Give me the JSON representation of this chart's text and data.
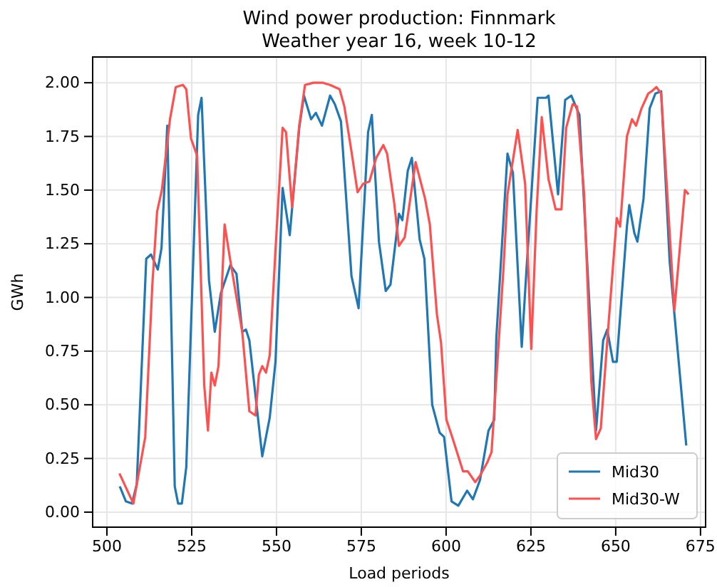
{
  "chart_data": {
    "type": "line",
    "title": "Wind power production: Finnmark",
    "subtitle": "Weather year 16, week 10-12",
    "xlabel": "Load periods",
    "ylabel": "GWh",
    "xlim": [
      495.8,
      676.5
    ],
    "xticks": [
      500,
      525,
      550,
      575,
      600,
      625,
      650,
      675
    ],
    "ylim": [
      -0.07,
      2.12
    ],
    "yticks": [
      {
        "value": 0,
        "label": "0.00"
      },
      {
        "value": 0.25,
        "label": "0.25"
      },
      {
        "value": 0.5,
        "label": "0.50"
      },
      {
        "value": 0.75,
        "label": "0.75"
      },
      {
        "value": 1,
        "label": "1.00"
      },
      {
        "value": 1.25,
        "label": "1.25"
      },
      {
        "value": 1.5,
        "label": "1.50"
      },
      {
        "value": 1.75,
        "label": "1.75"
      },
      {
        "value": 2,
        "label": "2.00"
      }
    ],
    "grid": true,
    "legend": "bottom right",
    "line_style": "solid",
    "marker": "none",
    "series": [
      {
        "name": "Mid30",
        "color": "#1f77b4",
        "x": [
          503.8,
          505.6,
          507.4,
          508.8,
          511.6,
          513.0,
          515.0,
          516.1,
          517.8,
          520.0,
          521.0,
          522.1,
          523.4,
          526.9,
          527.9,
          530.1,
          531.8,
          533.6,
          536.4,
          538.2,
          539.9,
          541.0,
          542.0,
          545.8,
          548.0,
          549.7,
          551.8,
          553.9,
          556.7,
          558.1,
          560.2,
          561.6,
          563.4,
          565.8,
          567.2,
          569.0,
          572.1,
          574.2,
          577.0,
          578.1,
          580.2,
          582.2,
          583.6,
          586.1,
          587.1,
          588.7,
          589.9,
          592.2,
          593.6,
          595.9,
          598.1,
          599.4,
          601.6,
          603.6,
          606.2,
          607.9,
          610.0,
          612.5,
          614.2,
          614.8,
          618.1,
          619.7,
          622.3,
          623.7,
          627.0,
          629.5,
          630.2,
          633.0,
          635.1,
          636.9,
          639.3,
          644.2,
          646.3,
          647.5,
          649.2,
          650.3,
          653.3,
          654.0,
          655.5,
          656.4,
          658.2,
          660.0,
          661.7,
          663.4,
          665.9,
          670.8
        ],
        "values": [
          0.12,
          0.05,
          0.04,
          0.13,
          1.18,
          1.2,
          1.13,
          1.23,
          1.8,
          0.12,
          0.04,
          0.04,
          0.21,
          1.85,
          1.93,
          1.08,
          0.84,
          1.02,
          1.15,
          1.11,
          0.84,
          0.85,
          0.8,
          0.26,
          0.44,
          0.7,
          1.51,
          1.29,
          1.79,
          1.94,
          1.83,
          1.86,
          1.8,
          1.94,
          1.9,
          1.82,
          1.1,
          0.95,
          1.77,
          1.85,
          1.26,
          1.03,
          1.06,
          1.39,
          1.36,
          1.59,
          1.65,
          1.27,
          1.18,
          0.5,
          0.37,
          0.35,
          0.05,
          0.03,
          0.1,
          0.06,
          0.15,
          0.38,
          0.43,
          0.81,
          1.67,
          1.58,
          0.77,
          1.13,
          1.93,
          1.93,
          1.94,
          1.48,
          1.92,
          1.94,
          1.85,
          0.38,
          0.8,
          0.85,
          0.7,
          0.7,
          1.33,
          1.43,
          1.3,
          1.26,
          1.46,
          1.88,
          1.95,
          1.96,
          1.17,
          0.31
        ]
      },
      {
        "name": "Mid30-W",
        "color": "#ff4f4f",
        "x": [
          503.7,
          507.8,
          511.3,
          513.4,
          514.8,
          516.2,
          518.6,
          520.3,
          522.4,
          523.4,
          524.8,
          526.6,
          528.7,
          529.8,
          530.8,
          531.8,
          532.9,
          534.7,
          536.4,
          539.9,
          542.0,
          543.8,
          544.8,
          545.8,
          546.9,
          548.0,
          549.7,
          551.8,
          552.8,
          554.6,
          556.7,
          558.4,
          560.9,
          563.7,
          565.8,
          568.6,
          570.0,
          572.1,
          573.9,
          575.6,
          577.4,
          579.4,
          581.5,
          582.6,
          584.7,
          586.1,
          587.8,
          591.0,
          593.8,
          595.2,
          597.3,
          598.5,
          600.1,
          601.8,
          605.0,
          606.4,
          608.6,
          610.0,
          612.1,
          613.4,
          615.5,
          616.9,
          618.1,
          619.7,
          621.1,
          623.3,
          625.1,
          626.7,
          628.2,
          630.2,
          632.3,
          634.0,
          635.4,
          637.3,
          638.6,
          640.7,
          642.8,
          644.2,
          645.6,
          648.0,
          650.3,
          651.3,
          653.3,
          654.8,
          656.0,
          657.6,
          659.6,
          660.6,
          662.0,
          663.4,
          667.3,
          670.4,
          671.5
        ],
        "values": [
          0.18,
          0.04,
          0.35,
          1.06,
          1.4,
          1.5,
          1.83,
          1.98,
          1.99,
          1.97,
          1.74,
          1.66,
          0.59,
          0.38,
          0.65,
          0.59,
          0.68,
          1.34,
          1.17,
          0.84,
          0.47,
          0.45,
          0.64,
          0.68,
          0.65,
          0.73,
          1.22,
          1.79,
          1.77,
          1.42,
          1.8,
          1.99,
          2.0,
          2.0,
          1.99,
          1.97,
          1.89,
          1.68,
          1.49,
          1.53,
          1.54,
          1.65,
          1.71,
          1.67,
          1.44,
          1.24,
          1.28,
          1.63,
          1.46,
          1.34,
          0.92,
          0.79,
          0.43,
          0.35,
          0.19,
          0.19,
          0.14,
          0.17,
          0.23,
          0.28,
          0.79,
          1.13,
          1.48,
          1.64,
          1.78,
          1.53,
          0.76,
          1.41,
          1.84,
          1.55,
          1.41,
          1.41,
          1.79,
          1.9,
          1.89,
          1.48,
          0.61,
          0.34,
          0.39,
          0.9,
          1.37,
          1.33,
          1.75,
          1.83,
          1.8,
          1.88,
          1.95,
          1.96,
          1.98,
          1.95,
          0.94,
          1.5,
          1.48
        ]
      }
    ]
  }
}
